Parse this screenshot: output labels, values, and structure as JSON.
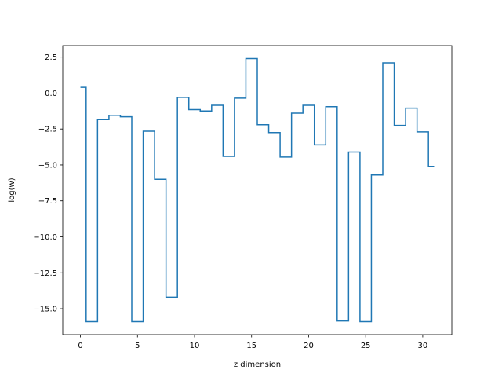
{
  "chart_data": {
    "type": "line",
    "drawstyle": "steps-post",
    "xlabel": "z dimension",
    "ylabel": "log(w)",
    "xlim": [
      -1.55,
      32.55
    ],
    "ylim": [
      -16.8,
      3.3
    ],
    "xticks": [
      0,
      5,
      10,
      15,
      20,
      25,
      30
    ],
    "yticks": [
      2.5,
      0.0,
      -2.5,
      -5.0,
      -7.5,
      -10.0,
      -12.5,
      -15.0
    ],
    "ytick_labels": [
      "2.5",
      "0.0",
      "−2.5",
      "−5.0",
      "−7.5",
      "−10.0",
      "−12.5",
      "−15.0"
    ],
    "grid": false,
    "series": [
      {
        "color": "#1f77b4",
        "x": [
          0,
          0.5,
          1.5,
          2.5,
          3.5,
          4.5,
          5.5,
          6.5,
          7.5,
          8.5,
          9.5,
          10.5,
          11.5,
          12.5,
          13.5,
          14.5,
          15.5,
          16.5,
          17.5,
          18.5,
          19.5,
          20.5,
          21.5,
          22.5,
          23.5,
          24.5,
          25.5,
          26.5,
          27.5,
          28.5,
          29.5,
          30.5,
          31
        ],
        "y": [
          0.4,
          -15.9,
          -1.85,
          -1.55,
          -1.65,
          -15.9,
          -2.65,
          -6.0,
          -14.2,
          -0.3,
          -1.15,
          -1.25,
          -0.85,
          -4.4,
          -0.35,
          2.4,
          -2.2,
          -2.75,
          -4.45,
          -1.4,
          -0.85,
          -3.6,
          -0.95,
          -15.85,
          -4.1,
          -15.9,
          -5.7,
          2.1,
          -2.25,
          -1.05,
          -2.7,
          -5.1,
          -5.1
        ]
      }
    ]
  }
}
